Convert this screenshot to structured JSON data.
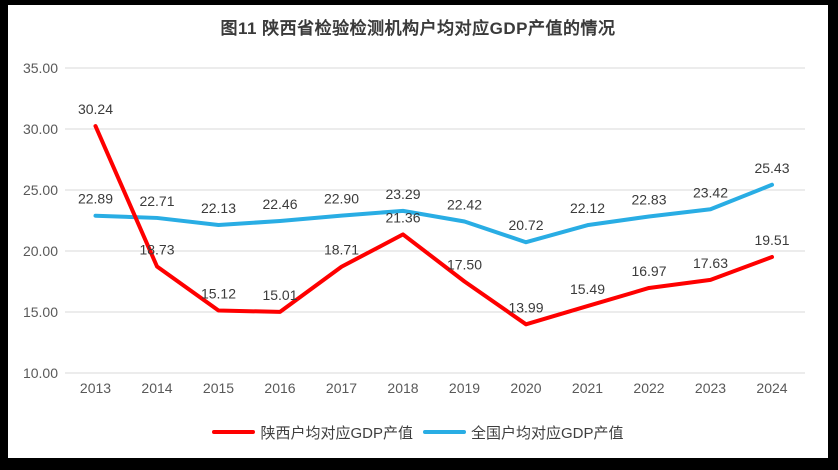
{
  "title": "图11 陕西省检验检测机构户均对应GDP产值的情况",
  "chart_data": {
    "type": "line",
    "title": "图11 陕西省检验检测机构户均对应GDP产值的情况",
    "categories": [
      "2013",
      "2014",
      "2015",
      "2016",
      "2017",
      "2018",
      "2019",
      "2020",
      "2021",
      "2022",
      "2023",
      "2024"
    ],
    "series": [
      {
        "name": "陕西户均对应GDP产值",
        "color": "#fe0000",
        "values": [
          30.24,
          18.73,
          15.12,
          15.01,
          18.71,
          21.36,
          17.5,
          13.99,
          15.49,
          16.97,
          17.63,
          19.51
        ]
      },
      {
        "name": "全国户均对应GDP产值",
        "color": "#29ade4",
        "values": [
          22.89,
          22.71,
          22.13,
          22.46,
          22.9,
          23.29,
          22.42,
          20.72,
          22.12,
          22.83,
          23.42,
          25.43
        ]
      }
    ],
    "xlabel": "",
    "ylabel": "",
    "ylim": [
      10,
      35
    ],
    "ytick_step": 5,
    "ytick_labels": [
      "10.00",
      "15.00",
      "20.00",
      "25.00",
      "30.00",
      "35.00"
    ],
    "grid": true,
    "data_labels": true,
    "legend_position": "bottom",
    "colors": {
      "grid": "#d9d9d9",
      "axis_text": "#595959",
      "data_label_text": "#3b3b3b",
      "title_text": "#3a3a3a",
      "panel_bg": "#ffffff",
      "frame_bg": "#000000"
    }
  }
}
